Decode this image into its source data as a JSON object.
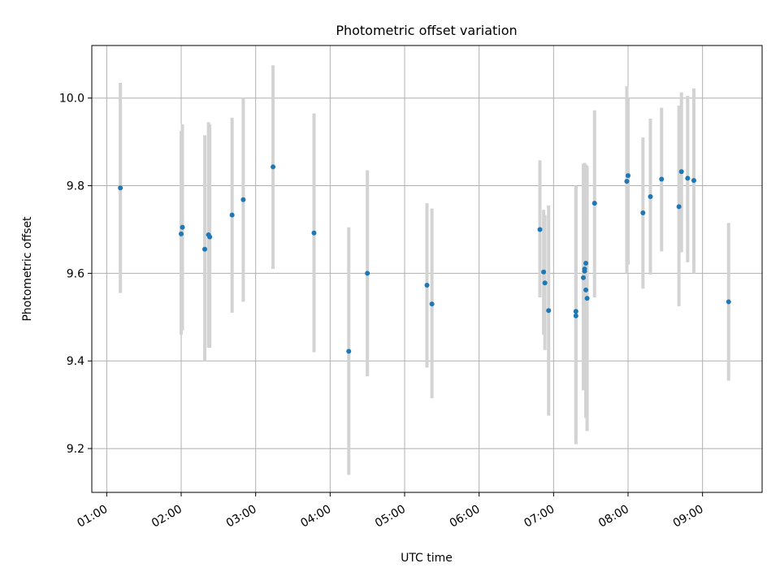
{
  "chart_data": {
    "type": "scatter",
    "title": "Photometric offset variation",
    "xlabel": "UTC time",
    "ylabel": "Photometric offset",
    "x_is_time": true,
    "xlim": [
      "00:48",
      "09:48"
    ],
    "ylim": [
      9.1,
      10.12
    ],
    "x_ticks": [
      "01:00",
      "02:00",
      "03:00",
      "04:00",
      "05:00",
      "06:00",
      "07:00",
      "08:00",
      "09:00"
    ],
    "y_ticks": [
      9.2,
      9.4,
      9.6,
      9.8,
      10.0
    ],
    "y_tick_labels": [
      "9.2",
      "9.4",
      "9.6",
      "9.8",
      "10.0"
    ],
    "grid": true,
    "marker_color": "#1f77b4",
    "errorbar_color": "#d3d3d3",
    "series": [
      {
        "points": [
          {
            "t": "01:11",
            "y": 9.795,
            "lo": 9.555,
            "hi": 10.035
          },
          {
            "t": "02:00",
            "y": 9.69,
            "lo": 9.46,
            "hi": 9.925
          },
          {
            "t": "02:01",
            "y": 9.705,
            "lo": 9.47,
            "hi": 9.94
          },
          {
            "t": "02:19",
            "y": 9.655,
            "lo": 9.4,
            "hi": 9.915
          },
          {
            "t": "02:22",
            "y": 9.688,
            "lo": 9.43,
            "hi": 9.945
          },
          {
            "t": "02:23",
            "y": 9.683,
            "lo": 9.43,
            "hi": 9.94
          },
          {
            "t": "02:41",
            "y": 9.733,
            "lo": 9.51,
            "hi": 9.955
          },
          {
            "t": "02:50",
            "y": 9.768,
            "lo": 9.535,
            "hi": 10.0
          },
          {
            "t": "03:14",
            "y": 9.843,
            "lo": 9.61,
            "hi": 10.075
          },
          {
            "t": "03:47",
            "y": 9.692,
            "lo": 9.42,
            "hi": 9.965
          },
          {
            "t": "04:15",
            "y": 9.422,
            "lo": 9.14,
            "hi": 9.705
          },
          {
            "t": "04:30",
            "y": 9.6,
            "lo": 9.365,
            "hi": 9.835
          },
          {
            "t": "05:18",
            "y": 9.573,
            "lo": 9.385,
            "hi": 9.76
          },
          {
            "t": "05:22",
            "y": 9.53,
            "lo": 9.315,
            "hi": 9.748
          },
          {
            "t": "06:49",
            "y": 9.7,
            "lo": 9.545,
            "hi": 9.858
          },
          {
            "t": "06:52",
            "y": 9.603,
            "lo": 9.46,
            "hi": 9.745
          },
          {
            "t": "06:53",
            "y": 9.578,
            "lo": 9.425,
            "hi": 9.733
          },
          {
            "t": "06:56",
            "y": 9.515,
            "lo": 9.275,
            "hi": 9.755
          },
          {
            "t": "07:18",
            "y": 9.513,
            "lo": 9.225,
            "hi": 9.8
          },
          {
            "t": "07:18",
            "y": 9.503,
            "lo": 9.21,
            "hi": 9.797
          },
          {
            "t": "07:24",
            "y": 9.59,
            "lo": 9.333,
            "hi": 9.85
          },
          {
            "t": "07:25",
            "y": 9.605,
            "lo": 9.365,
            "hi": 9.848
          },
          {
            "t": "07:25",
            "y": 9.61,
            "lo": 9.365,
            "hi": 9.852
          },
          {
            "t": "07:26",
            "y": 9.623,
            "lo": 9.4,
            "hi": 9.848
          },
          {
            "t": "07:26",
            "y": 9.562,
            "lo": 9.27,
            "hi": 9.845
          },
          {
            "t": "07:27",
            "y": 9.543,
            "lo": 9.24,
            "hi": 9.845
          },
          {
            "t": "07:33",
            "y": 9.76,
            "lo": 9.545,
            "hi": 9.972
          },
          {
            "t": "07:59",
            "y": 9.81,
            "lo": 9.6,
            "hi": 10.027
          },
          {
            "t": "08:00",
            "y": 9.823,
            "lo": 9.62,
            "hi": 10.0
          },
          {
            "t": "08:12",
            "y": 9.738,
            "lo": 9.565,
            "hi": 9.91
          },
          {
            "t": "08:18",
            "y": 9.775,
            "lo": 9.597,
            "hi": 9.953
          },
          {
            "t": "08:27",
            "y": 9.815,
            "lo": 9.65,
            "hi": 9.978
          },
          {
            "t": "08:41",
            "y": 9.752,
            "lo": 9.525,
            "hi": 9.983
          },
          {
            "t": "08:43",
            "y": 9.832,
            "lo": 9.648,
            "hi": 10.013
          },
          {
            "t": "08:48",
            "y": 9.817,
            "lo": 9.625,
            "hi": 10.005
          },
          {
            "t": "08:53",
            "y": 9.812,
            "lo": 9.6,
            "hi": 10.022
          },
          {
            "t": "09:21",
            "y": 9.535,
            "lo": 9.355,
            "hi": 9.715
          }
        ]
      }
    ]
  }
}
